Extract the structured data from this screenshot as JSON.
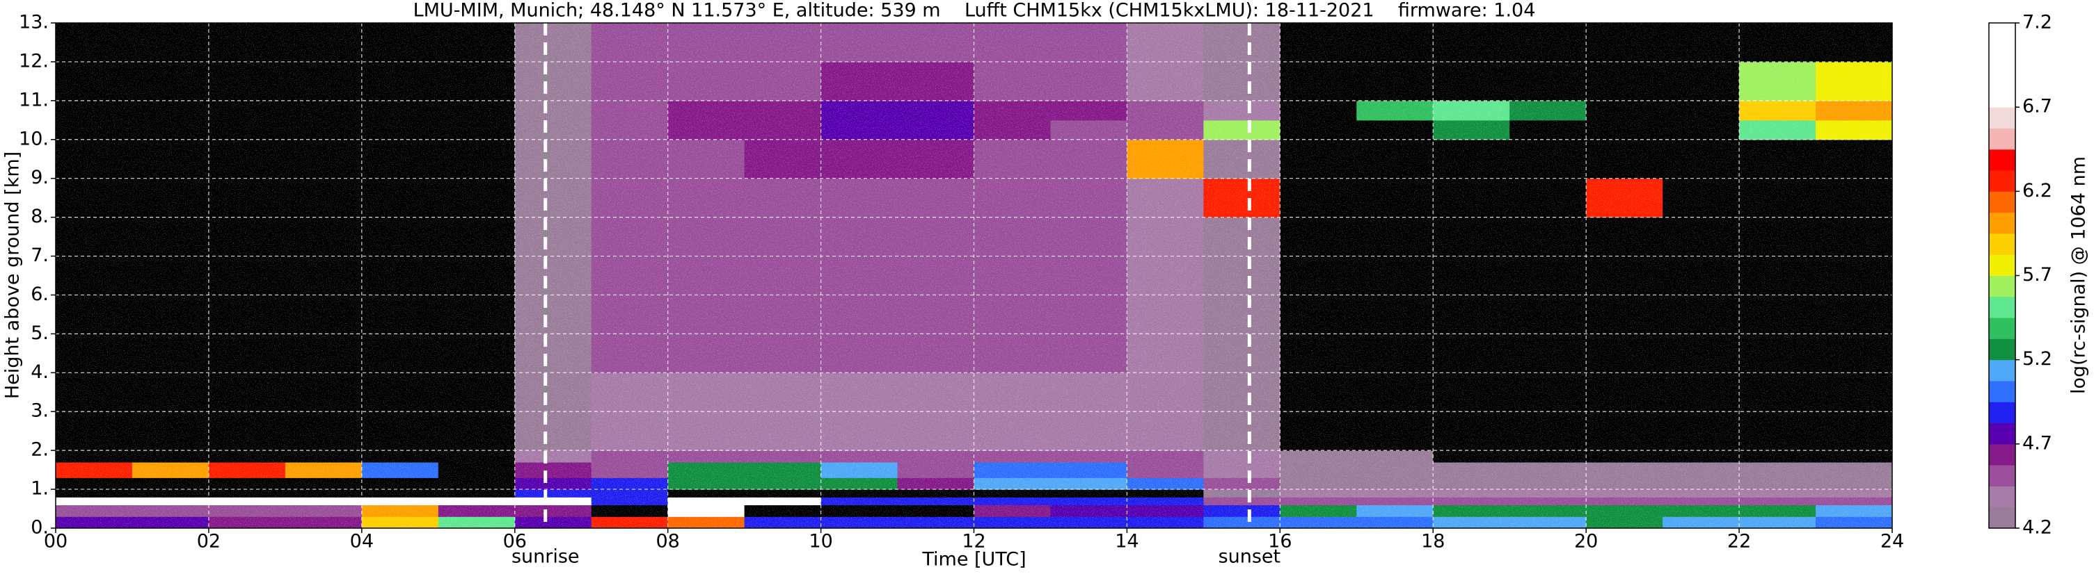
{
  "chart_data": {
    "type": "heatmap",
    "title": "LMU-MIM, Munich; 48.148° N 11.573° E, altitude: 539 m    Lufft CHM15kx (CHM15kxLMU): 18-11-2021    firmware: 1.04",
    "xlabel": "Time [UTC]",
    "ylabel": "Height above ground [km]",
    "colorbar_label": "log(rc-signal) @ 1064 nm",
    "x": [
      0,
      1,
      2,
      3,
      4,
      5,
      6,
      7,
      8,
      9,
      10,
      11,
      12,
      13,
      14,
      15,
      16,
      17,
      18,
      19,
      20,
      21,
      22,
      23,
      24
    ],
    "y": [
      0,
      0.3,
      0.6,
      0.8,
      1.0,
      1.3,
      1.7,
      2,
      4,
      6,
      8,
      9,
      10,
      10.5,
      11,
      12,
      13
    ],
    "z": [
      [
        4.7,
        4.7,
        4.6,
        4.6,
        5.9,
        5.5,
        4.8,
        6.3,
        6.1,
        4.9,
        4.9,
        4.9,
        4.9,
        4.9,
        4.9,
        4.95,
        5.0,
        5.0,
        5.1,
        5.1,
        5.2,
        5.1,
        5.15,
        5.0
      ],
      [
        4.5,
        4.5,
        4.5,
        4.5,
        6.0,
        4.6,
        4.6,
        4.0,
        6.9,
        4.0,
        4.0,
        4.0,
        4.6,
        4.7,
        4.8,
        4.9,
        5.2,
        5.1,
        5.2,
        5.2,
        5.3,
        5.2,
        5.2,
        5.1
      ],
      [
        6.9,
        6.9,
        6.9,
        6.9,
        6.9,
        6.9,
        6.9,
        4.9,
        6.9,
        6.9,
        4.9,
        4.9,
        4.9,
        4.9,
        4.9,
        4.5,
        4.5,
        4.5,
        4.5,
        4.5,
        4.5,
        4.5,
        4.5,
        4.5
      ],
      [
        4.0,
        4.0,
        4.0,
        4.0,
        4.0,
        4.0,
        4.9,
        4.9,
        4.0,
        4.0,
        4.0,
        4.0,
        4.0,
        4.0,
        4.0,
        4.3,
        4.4,
        4.4,
        4.4,
        4.4,
        4.4,
        4.4,
        4.4,
        4.4
      ],
      [
        4.0,
        4.0,
        4.0,
        4.0,
        4.0,
        4.0,
        4.8,
        4.9,
        5.3,
        5.3,
        5.3,
        4.6,
        5.1,
        5.1,
        5.0,
        4.5,
        4.3,
        4.3,
        4.3,
        4.3,
        4.3,
        4.3,
        4.3,
        4.3
      ],
      [
        6.3,
        6.0,
        6.2,
        6.0,
        5.0,
        4.0,
        4.6,
        4.5,
        5.2,
        5.2,
        5.1,
        4.5,
        5.0,
        5.0,
        4.5,
        4.4,
        4.3,
        4.3,
        4.3,
        4.3,
        4.3,
        4.3,
        4.3,
        4.3
      ],
      [
        4.0,
        4.0,
        4.0,
        4.0,
        4.0,
        4.0,
        4.4,
        4.5,
        4.5,
        4.5,
        4.5,
        4.5,
        4.5,
        4.5,
        4.5,
        4.4,
        4.2,
        4.2,
        4.1,
        4.1,
        4.1,
        4.1,
        4.1,
        4.1
      ],
      [
        4.1,
        4.1,
        4.1,
        4.1,
        4.1,
        4.1,
        4.3,
        4.4,
        4.4,
        4.4,
        4.4,
        4.4,
        4.4,
        4.4,
        4.4,
        4.3,
        4.1,
        4.1,
        4.1,
        4.1,
        4.1,
        4.1,
        4.1,
        4.1
      ],
      [
        4.1,
        4.1,
        4.1,
        4.1,
        4.1,
        4.1,
        4.3,
        4.45,
        4.45,
        4.45,
        4.45,
        4.45,
        4.45,
        4.45,
        4.4,
        4.3,
        4.1,
        4.1,
        4.1,
        4.1,
        4.1,
        4.1,
        4.1,
        4.1
      ],
      [
        4.1,
        4.1,
        4.1,
        4.1,
        4.1,
        4.1,
        4.3,
        4.45,
        4.45,
        4.45,
        4.5,
        4.5,
        4.45,
        4.45,
        4.4,
        4.3,
        4.1,
        4.1,
        4.1,
        4.1,
        4.1,
        4.1,
        4.1,
        4.1
      ],
      [
        4.1,
        4.1,
        4.1,
        4.1,
        4.1,
        4.1,
        4.3,
        4.45,
        4.45,
        4.5,
        4.5,
        4.5,
        4.5,
        4.45,
        4.4,
        6.3,
        4.1,
        4.1,
        4.1,
        4.1,
        6.3,
        4.1,
        4.1,
        4.1
      ],
      [
        4.1,
        4.1,
        4.1,
        4.1,
        4.1,
        4.1,
        4.3,
        4.5,
        4.5,
        4.6,
        4.6,
        4.6,
        4.5,
        4.5,
        6.0,
        4.3,
        4.1,
        4.1,
        4.1,
        4.1,
        4.1,
        4.1,
        4.1,
        4.1
      ],
      [
        4.1,
        4.1,
        4.1,
        4.1,
        4.1,
        4.1,
        4.3,
        4.5,
        4.6,
        4.6,
        4.7,
        4.7,
        4.6,
        4.5,
        4.5,
        5.6,
        4.1,
        4.1,
        5.2,
        4.1,
        4.1,
        4.1,
        5.5,
        5.7
      ],
      [
        4.1,
        4.1,
        4.1,
        4.1,
        4.1,
        4.1,
        4.3,
        4.5,
        4.6,
        4.6,
        4.7,
        4.7,
        4.6,
        4.6,
        4.5,
        4.4,
        4.1,
        5.4,
        5.5,
        5.3,
        4.1,
        4.1,
        5.9,
        6.0
      ],
      [
        4.1,
        4.1,
        4.1,
        4.1,
        4.1,
        4.1,
        4.3,
        4.5,
        4.55,
        4.55,
        4.6,
        4.6,
        4.55,
        4.5,
        4.4,
        4.3,
        4.1,
        4.1,
        4.1,
        4.1,
        4.1,
        4.1,
        5.6,
        5.7
      ],
      [
        4.1,
        4.1,
        4.1,
        4.1,
        4.1,
        4.1,
        4.3,
        4.45,
        4.5,
        4.5,
        4.5,
        4.5,
        4.5,
        4.45,
        4.4,
        4.3,
        4.1,
        4.1,
        4.1,
        4.1,
        4.1,
        4.1,
        4.1,
        4.1
      ]
    ],
    "xlim": [
      0,
      24
    ],
    "ylim": [
      0,
      13
    ],
    "xticks": [
      {
        "value": 0,
        "label": "00"
      },
      {
        "value": 2,
        "label": "02"
      },
      {
        "value": 4,
        "label": "04"
      },
      {
        "value": 6,
        "label": "06"
      },
      {
        "value": 8,
        "label": "08"
      },
      10,
      12,
      14,
      16,
      18,
      20,
      22,
      24
    ],
    "yticks": [
      {
        "value": 0,
        "label": "0."
      },
      {
        "value": 1,
        "label": "1."
      },
      {
        "value": 2,
        "label": "2."
      },
      {
        "value": 3,
        "label": "3."
      },
      {
        "value": 4,
        "label": "4."
      },
      {
        "value": 5,
        "label": "5."
      },
      {
        "value": 6,
        "label": "6."
      },
      {
        "value": 7,
        "label": "7."
      },
      {
        "value": 8,
        "label": "8."
      },
      {
        "value": 9,
        "label": "9."
      },
      {
        "value": 10,
        "label": "10."
      },
      {
        "value": 11,
        "label": "11."
      },
      {
        "value": 12,
        "label": "12."
      },
      {
        "value": 13,
        "label": "13."
      }
    ],
    "clim": [
      4.2,
      7.2
    ],
    "cticks": [
      4.2,
      4.7,
      5.2,
      5.7,
      6.2,
      6.7,
      7.2
    ],
    "colors": [
      "#9a7d9a",
      "#a87ca8",
      "#9a509a",
      "#861a8a",
      "#5800b0",
      "#2020f0",
      "#3070ff",
      "#50a8f8",
      "#109040",
      "#30c060",
      "#60e890",
      "#a0f060",
      "#f0f000",
      "#ffd000",
      "#ffa000",
      "#ff6800",
      "#ff2000",
      "#ff0000",
      "#f5b5b5",
      "#f0dada",
      "#ffffff",
      "#ffffff",
      "#ffffff",
      "#ffffff"
    ],
    "under_color": "#000000",
    "grid": true,
    "grid_color": "#ffffff",
    "vlines": [
      {
        "x": 6.4,
        "label": "sunrise"
      },
      {
        "x": 15.6,
        "label": "sunset"
      }
    ]
  }
}
